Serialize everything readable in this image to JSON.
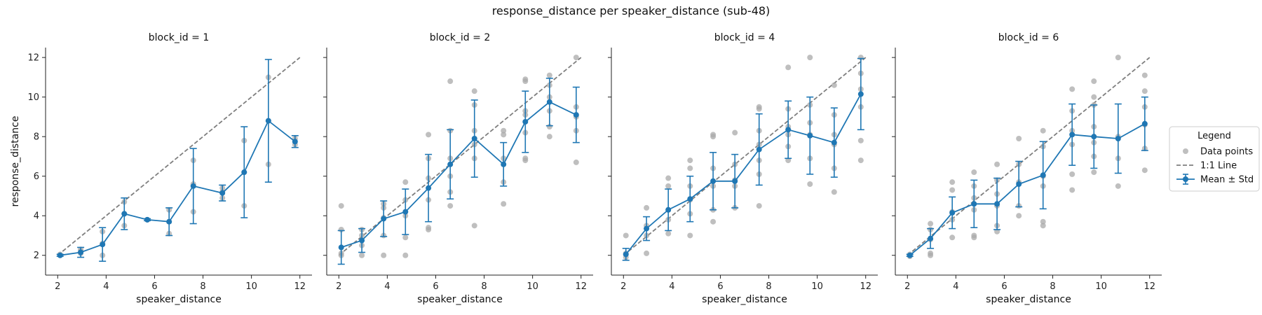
{
  "figure": {
    "title": "response_distance per speaker_distance (sub-48)",
    "xlabel": "speaker_distance",
    "ylabel": "response_distance"
  },
  "legend": {
    "title": "Legend",
    "placement": "right",
    "items": [
      {
        "label": "Data points",
        "kind": "scatter"
      },
      {
        "label": "1:1 Line",
        "kind": "dashed-line"
      },
      {
        "label": "Mean ± Std",
        "kind": "errorbar-line"
      }
    ]
  },
  "colors": {
    "mean": "#1f77b4",
    "points": "#a9a9a9",
    "identity": "#7f7f7f"
  },
  "chart_data": {
    "type": "line",
    "xlim": [
      1.5,
      12.5
    ],
    "ylim": [
      1,
      12.5
    ],
    "xticks": [
      2,
      4,
      6,
      8,
      10,
      12
    ],
    "yticks": [
      2,
      4,
      6,
      8,
      10,
      12
    ],
    "grid": false,
    "identity_line": [
      2,
      12
    ],
    "panels": [
      {
        "title": "block_id = 1",
        "mean": [
          {
            "x": 2.1,
            "y": 2.0,
            "std": 0.05
          },
          {
            "x": 2.95,
            "y": 2.15,
            "std": 0.25
          },
          {
            "x": 3.85,
            "y": 2.55,
            "std": 0.85
          },
          {
            "x": 4.75,
            "y": 4.1,
            "std": 0.8
          },
          {
            "x": 5.7,
            "y": 3.8,
            "std": 0.05
          },
          {
            "x": 6.6,
            "y": 3.7,
            "std": 0.7
          },
          {
            "x": 7.6,
            "y": 5.5,
            "std": 1.9
          },
          {
            "x": 8.8,
            "y": 5.15,
            "std": 0.4
          },
          {
            "x": 9.7,
            "y": 6.2,
            "std": 2.3
          },
          {
            "x": 10.7,
            "y": 8.8,
            "std": 3.1
          },
          {
            "x": 11.8,
            "y": 7.75,
            "std": 0.3
          }
        ],
        "points": [
          [
            2.1,
            2.0
          ],
          [
            2.1,
            2.05
          ],
          [
            2.95,
            2.1
          ],
          [
            2.95,
            2.2
          ],
          [
            2.95,
            2.3
          ],
          [
            3.85,
            2.0
          ],
          [
            3.85,
            2.6
          ],
          [
            3.85,
            3.2
          ],
          [
            4.75,
            3.5
          ],
          [
            4.75,
            4.1
          ],
          [
            4.75,
            4.7
          ],
          [
            5.7,
            3.8
          ],
          [
            6.6,
            3.1
          ],
          [
            6.6,
            3.7
          ],
          [
            6.6,
            4.3
          ],
          [
            7.6,
            4.2
          ],
          [
            7.6,
            5.6
          ],
          [
            7.6,
            6.8
          ],
          [
            8.8,
            4.9
          ],
          [
            8.8,
            5.2
          ],
          [
            8.8,
            5.4
          ],
          [
            9.7,
            4.5
          ],
          [
            9.7,
            6.2
          ],
          [
            9.7,
            7.8
          ],
          [
            10.7,
            6.6
          ],
          [
            10.7,
            8.8
          ],
          [
            10.7,
            11.0
          ],
          [
            11.8,
            7.6
          ],
          [
            11.8,
            7.9
          ]
        ]
      },
      {
        "title": "block_id = 2",
        "mean": [
          {
            "x": 2.1,
            "y": 2.4,
            "std": 0.85
          },
          {
            "x": 2.95,
            "y": 2.75,
            "std": 0.6
          },
          {
            "x": 3.85,
            "y": 3.85,
            "std": 0.9
          },
          {
            "x": 4.75,
            "y": 4.2,
            "std": 1.15
          },
          {
            "x": 5.7,
            "y": 5.4,
            "std": 1.7
          },
          {
            "x": 6.6,
            "y": 6.6,
            "std": 1.75
          },
          {
            "x": 7.6,
            "y": 7.9,
            "std": 1.95
          },
          {
            "x": 8.8,
            "y": 6.6,
            "std": 1.1
          },
          {
            "x": 9.7,
            "y": 8.75,
            "std": 1.55
          },
          {
            "x": 10.7,
            "y": 9.75,
            "std": 1.2
          },
          {
            "x": 11.8,
            "y": 9.1,
            "std": 1.4
          }
        ],
        "points": [
          [
            2.1,
            2.0
          ],
          [
            2.1,
            2.1
          ],
          [
            2.1,
            3.3
          ],
          [
            2.1,
            4.5
          ],
          [
            2.95,
            2.0
          ],
          [
            2.95,
            2.5
          ],
          [
            2.95,
            3.0
          ],
          [
            2.95,
            3.3
          ],
          [
            3.85,
            2.0
          ],
          [
            3.85,
            3.0
          ],
          [
            3.85,
            3.9
          ],
          [
            3.85,
            4.4
          ],
          [
            3.85,
            4.6
          ],
          [
            4.75,
            2.0
          ],
          [
            4.75,
            2.9
          ],
          [
            4.75,
            4.0
          ],
          [
            4.75,
            4.8
          ],
          [
            4.75,
            5.7
          ],
          [
            5.7,
            3.3
          ],
          [
            5.7,
            3.4
          ],
          [
            5.7,
            4.8
          ],
          [
            5.7,
            5.9
          ],
          [
            5.7,
            6.9
          ],
          [
            5.7,
            8.1
          ],
          [
            6.6,
            4.5
          ],
          [
            6.6,
            5.2
          ],
          [
            6.6,
            6.0
          ],
          [
            6.6,
            6.9
          ],
          [
            6.6,
            8.3
          ],
          [
            6.6,
            10.8
          ],
          [
            7.6,
            3.5
          ],
          [
            7.6,
            6.9
          ],
          [
            7.6,
            7.6
          ],
          [
            7.6,
            8.3
          ],
          [
            7.6,
            9.6
          ],
          [
            7.6,
            10.3
          ],
          [
            8.8,
            4.6
          ],
          [
            8.8,
            5.7
          ],
          [
            8.8,
            6.9
          ],
          [
            8.8,
            8.1
          ],
          [
            8.8,
            8.3
          ],
          [
            9.7,
            6.8
          ],
          [
            9.7,
            6.9
          ],
          [
            9.7,
            8.2
          ],
          [
            9.7,
            9.1
          ],
          [
            9.7,
            9.3
          ],
          [
            9.7,
            10.8
          ],
          [
            9.7,
            10.9
          ],
          [
            10.7,
            8.0
          ],
          [
            10.7,
            8.5
          ],
          [
            10.7,
            9.3
          ],
          [
            10.7,
            10.0
          ],
          [
            10.7,
            10.6
          ],
          [
            10.7,
            11.1
          ],
          [
            11.8,
            6.7
          ],
          [
            11.8,
            8.3
          ],
          [
            11.8,
            9.0
          ],
          [
            11.8,
            9.5
          ],
          [
            11.8,
            12.0
          ]
        ]
      },
      {
        "title": "block_id = 4",
        "mean": [
          {
            "x": 2.1,
            "y": 2.05,
            "std": 0.3
          },
          {
            "x": 2.95,
            "y": 3.35,
            "std": 0.6
          },
          {
            "x": 3.85,
            "y": 4.3,
            "std": 1.05
          },
          {
            "x": 4.75,
            "y": 4.85,
            "std": 1.15
          },
          {
            "x": 5.7,
            "y": 5.75,
            "std": 1.45
          },
          {
            "x": 6.6,
            "y": 5.75,
            "std": 1.35
          },
          {
            "x": 7.6,
            "y": 7.35,
            "std": 1.8
          },
          {
            "x": 8.8,
            "y": 8.35,
            "std": 1.45
          },
          {
            "x": 9.7,
            "y": 8.05,
            "std": 1.95
          },
          {
            "x": 10.7,
            "y": 7.7,
            "std": 1.75
          },
          {
            "x": 11.8,
            "y": 10.15,
            "std": 1.8
          }
        ],
        "points": [
          [
            2.1,
            1.9
          ],
          [
            2.1,
            2.1
          ],
          [
            2.1,
            3.0
          ],
          [
            2.95,
            2.1
          ],
          [
            2.95,
            3.0
          ],
          [
            2.95,
            3.5
          ],
          [
            2.95,
            4.4
          ],
          [
            3.85,
            3.1
          ],
          [
            3.85,
            3.8
          ],
          [
            3.85,
            4.3
          ],
          [
            3.85,
            5.5
          ],
          [
            3.85,
            5.9
          ],
          [
            4.75,
            3.0
          ],
          [
            4.75,
            4.1
          ],
          [
            4.75,
            4.8
          ],
          [
            4.75,
            5.5
          ],
          [
            4.75,
            6.4
          ],
          [
            4.75,
            6.8
          ],
          [
            5.7,
            3.7
          ],
          [
            5.7,
            4.3
          ],
          [
            5.7,
            5.5
          ],
          [
            5.7,
            6.4
          ],
          [
            5.7,
            8.0
          ],
          [
            5.7,
            8.1
          ],
          [
            6.6,
            4.4
          ],
          [
            6.6,
            5.5
          ],
          [
            6.6,
            5.8
          ],
          [
            6.6,
            6.6
          ],
          [
            6.6,
            8.2
          ],
          [
            7.6,
            4.5
          ],
          [
            7.6,
            6.1
          ],
          [
            7.6,
            6.8
          ],
          [
            7.6,
            7.6
          ],
          [
            7.6,
            8.3
          ],
          [
            7.6,
            9.4
          ],
          [
            7.6,
            9.5
          ],
          [
            8.8,
            6.8
          ],
          [
            8.8,
            7.5
          ],
          [
            8.8,
            8.1
          ],
          [
            8.8,
            8.5
          ],
          [
            8.8,
            9.4
          ],
          [
            8.8,
            11.5
          ],
          [
            9.7,
            5.6
          ],
          [
            9.7,
            6.9
          ],
          [
            9.7,
            8.1
          ],
          [
            9.7,
            8.7
          ],
          [
            9.7,
            9.6
          ],
          [
            9.7,
            12.0
          ],
          [
            10.7,
            5.2
          ],
          [
            10.7,
            6.4
          ],
          [
            10.7,
            7.6
          ],
          [
            10.7,
            8.1
          ],
          [
            10.7,
            9.1
          ],
          [
            10.7,
            10.6
          ],
          [
            11.8,
            6.8
          ],
          [
            11.8,
            7.8
          ],
          [
            11.8,
            9.5
          ],
          [
            11.8,
            10.4
          ],
          [
            11.8,
            11.2
          ],
          [
            11.8,
            12.0
          ]
        ]
      },
      {
        "title": "block_id = 6",
        "mean": [
          {
            "x": 2.1,
            "y": 2.0,
            "std": 0.05
          },
          {
            "x": 2.95,
            "y": 2.85,
            "std": 0.5
          },
          {
            "x": 3.85,
            "y": 4.15,
            "std": 0.8
          },
          {
            "x": 4.75,
            "y": 4.6,
            "std": 1.2
          },
          {
            "x": 5.7,
            "y": 4.6,
            "std": 1.3
          },
          {
            "x": 6.6,
            "y": 5.6,
            "std": 1.15
          },
          {
            "x": 7.6,
            "y": 6.05,
            "std": 1.7
          },
          {
            "x": 8.8,
            "y": 8.1,
            "std": 1.55
          },
          {
            "x": 9.7,
            "y": 8.0,
            "std": 1.6
          },
          {
            "x": 10.7,
            "y": 7.9,
            "std": 1.75
          },
          {
            "x": 11.8,
            "y": 8.65,
            "std": 1.35
          }
        ],
        "points": [
          [
            2.1,
            1.95
          ],
          [
            2.1,
            2.05
          ],
          [
            2.95,
            2.0
          ],
          [
            2.95,
            2.1
          ],
          [
            2.95,
            2.8
          ],
          [
            2.95,
            3.3
          ],
          [
            2.95,
            3.6
          ],
          [
            3.85,
            2.9
          ],
          [
            3.85,
            3.8
          ],
          [
            3.85,
            4.2
          ],
          [
            3.85,
            5.3
          ],
          [
            3.85,
            5.7
          ],
          [
            4.75,
            2.9
          ],
          [
            4.75,
            3.0
          ],
          [
            4.75,
            4.3
          ],
          [
            4.75,
            4.9
          ],
          [
            4.75,
            5.5
          ],
          [
            4.75,
            6.2
          ],
          [
            5.7,
            3.2
          ],
          [
            5.7,
            3.5
          ],
          [
            5.7,
            4.5
          ],
          [
            5.7,
            5.1
          ],
          [
            5.7,
            5.8
          ],
          [
            5.7,
            6.6
          ],
          [
            6.6,
            4.0
          ],
          [
            6.6,
            4.5
          ],
          [
            6.6,
            5.7
          ],
          [
            6.6,
            6.6
          ],
          [
            6.6,
            7.9
          ],
          [
            7.6,
            3.5
          ],
          [
            7.6,
            3.7
          ],
          [
            7.6,
            5.5
          ],
          [
            7.6,
            6.0
          ],
          [
            7.6,
            7.5
          ],
          [
            7.6,
            8.3
          ],
          [
            8.8,
            5.3
          ],
          [
            8.8,
            6.1
          ],
          [
            8.8,
            7.6
          ],
          [
            8.8,
            8.3
          ],
          [
            8.8,
            9.3
          ],
          [
            8.8,
            10.4
          ],
          [
            9.7,
            6.2
          ],
          [
            9.7,
            7.0
          ],
          [
            9.7,
            7.7
          ],
          [
            9.7,
            8.5
          ],
          [
            9.7,
            9.6
          ],
          [
            9.7,
            10.0
          ],
          [
            9.7,
            10.8
          ],
          [
            10.7,
            5.5
          ],
          [
            10.7,
            6.9
          ],
          [
            10.7,
            8.0
          ],
          [
            10.7,
            12.0
          ],
          [
            11.8,
            6.3
          ],
          [
            11.8,
            7.4
          ],
          [
            11.8,
            8.6
          ],
          [
            11.8,
            9.5
          ],
          [
            11.8,
            10.3
          ],
          [
            11.8,
            11.1
          ]
        ]
      }
    ]
  }
}
